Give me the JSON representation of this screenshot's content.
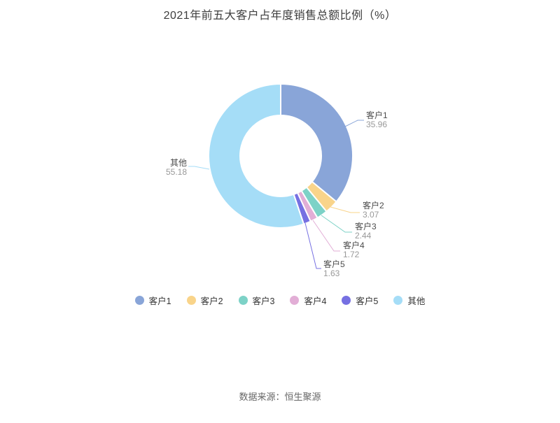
{
  "title": "2021年前五大客户占年度销售总额比例（%）",
  "footer": {
    "source_label": "数据来源：恒生聚源"
  },
  "chart_data": {
    "type": "pie",
    "subtype": "donut",
    "title": "2021年前五大客户占年度销售总额比例（%）",
    "unit": "%",
    "start_angle_deg": 0,
    "direction": "clockwise",
    "inner_radius_ratio": 0.56,
    "legend_position": "bottom",
    "total": 100.0,
    "series": [
      {
        "name": "客户1",
        "value": 35.96,
        "value_label": "35.96",
        "color": "#89A5D8"
      },
      {
        "name": "客户2",
        "value": 3.07,
        "value_label": "3.07",
        "color": "#F9D48A"
      },
      {
        "name": "客户3",
        "value": 2.44,
        "value_label": "2.44",
        "color": "#7DD2C7"
      },
      {
        "name": "客户4",
        "value": 1.72,
        "value_label": "1.72",
        "color": "#E2AED6"
      },
      {
        "name": "客户5",
        "value": 1.63,
        "value_label": "1.63",
        "color": "#7670E2"
      },
      {
        "name": "其他",
        "value": 55.18,
        "value_label": "55.18",
        "color": "#A5DDF7"
      }
    ],
    "legend": [
      "客户1",
      "客户2",
      "客户3",
      "客户4",
      "客户5",
      "其他"
    ]
  }
}
